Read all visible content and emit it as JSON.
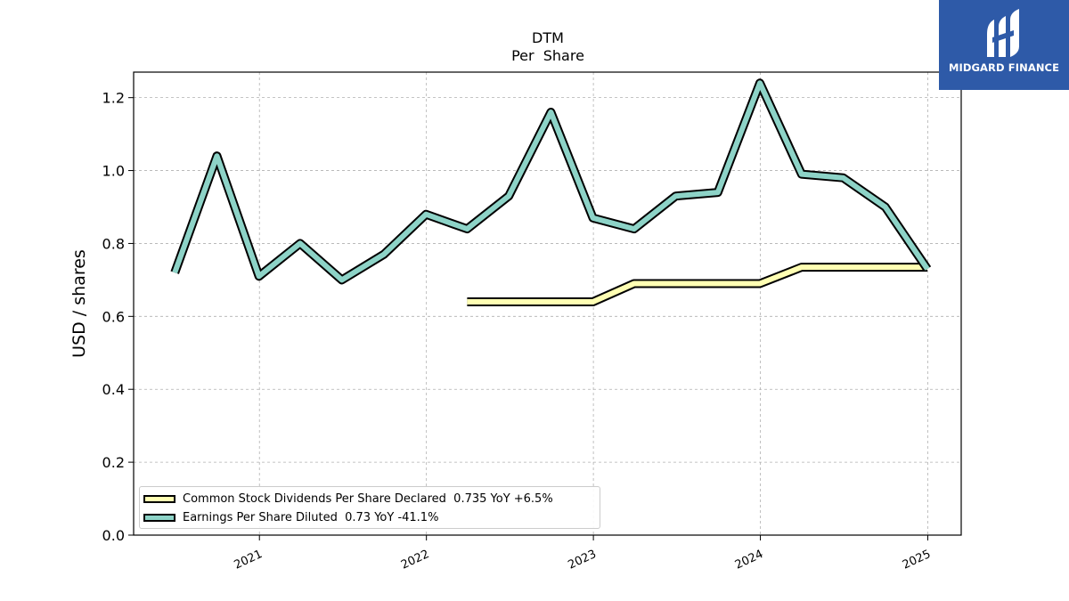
{
  "chart_data": {
    "type": "line",
    "title": "DTM",
    "subtitle": "Per  Share",
    "xlabel": "",
    "ylabel": "USD / shares",
    "xlim": [
      "2020-04-01",
      "2025-03-15"
    ],
    "ylim": [
      0,
      1.27
    ],
    "y_ticks": [
      0.0,
      0.2,
      0.4,
      0.6,
      0.8,
      1.0,
      1.2
    ],
    "y_tick_labels": [
      "0.0",
      "0.2",
      "0.4",
      "0.6",
      "0.8",
      "1.0",
      "1.2"
    ],
    "x_ticks": [
      "2021-01-01",
      "2022-01-01",
      "2023-01-01",
      "2024-01-01",
      "2025-01-01"
    ],
    "x_tick_labels": [
      "2021",
      "2022",
      "2023",
      "2024",
      "2025"
    ],
    "grid": true,
    "legend_position": "lower-left",
    "series": [
      {
        "name": "Common Stock Dividends Per Share Declared  0.735 YoY +6.5%",
        "color": "#ffffb3",
        "points": [
          [
            "2022-03-31",
            0.64
          ],
          [
            "2022-06-30",
            0.64
          ],
          [
            "2022-09-30",
            0.64
          ],
          [
            "2022-12-31",
            0.64
          ],
          [
            "2023-03-31",
            0.69
          ],
          [
            "2023-06-30",
            0.69
          ],
          [
            "2023-09-30",
            0.69
          ],
          [
            "2023-12-31",
            0.69
          ],
          [
            "2024-03-31",
            0.735
          ],
          [
            "2024-06-30",
            0.735
          ],
          [
            "2024-09-30",
            0.735
          ],
          [
            "2024-12-31",
            0.735
          ]
        ]
      },
      {
        "name": "Earnings Per Share Diluted  0.73 YoY -41.1%",
        "color": "#8dd3c7",
        "points": [
          [
            "2020-06-30",
            0.72
          ],
          [
            "2020-09-30",
            1.04
          ],
          [
            "2020-12-31",
            0.71
          ],
          [
            "2021-03-31",
            0.8
          ],
          [
            "2021-06-30",
            0.7
          ],
          [
            "2021-09-30",
            0.77
          ],
          [
            "2021-12-31",
            0.88
          ],
          [
            "2022-03-31",
            0.84
          ],
          [
            "2022-06-30",
            0.93
          ],
          [
            "2022-09-30",
            1.16
          ],
          [
            "2022-12-31",
            0.87
          ],
          [
            "2023-03-31",
            0.84
          ],
          [
            "2023-06-30",
            0.93
          ],
          [
            "2023-09-30",
            0.94
          ],
          [
            "2023-12-31",
            1.24
          ],
          [
            "2024-03-31",
            0.99
          ],
          [
            "2024-06-30",
            0.98
          ],
          [
            "2024-09-30",
            0.9
          ],
          [
            "2024-12-31",
            0.73
          ]
        ]
      }
    ]
  },
  "logo": {
    "text": "MIDGARD FINANCE",
    "background": "#2e5aa8"
  }
}
